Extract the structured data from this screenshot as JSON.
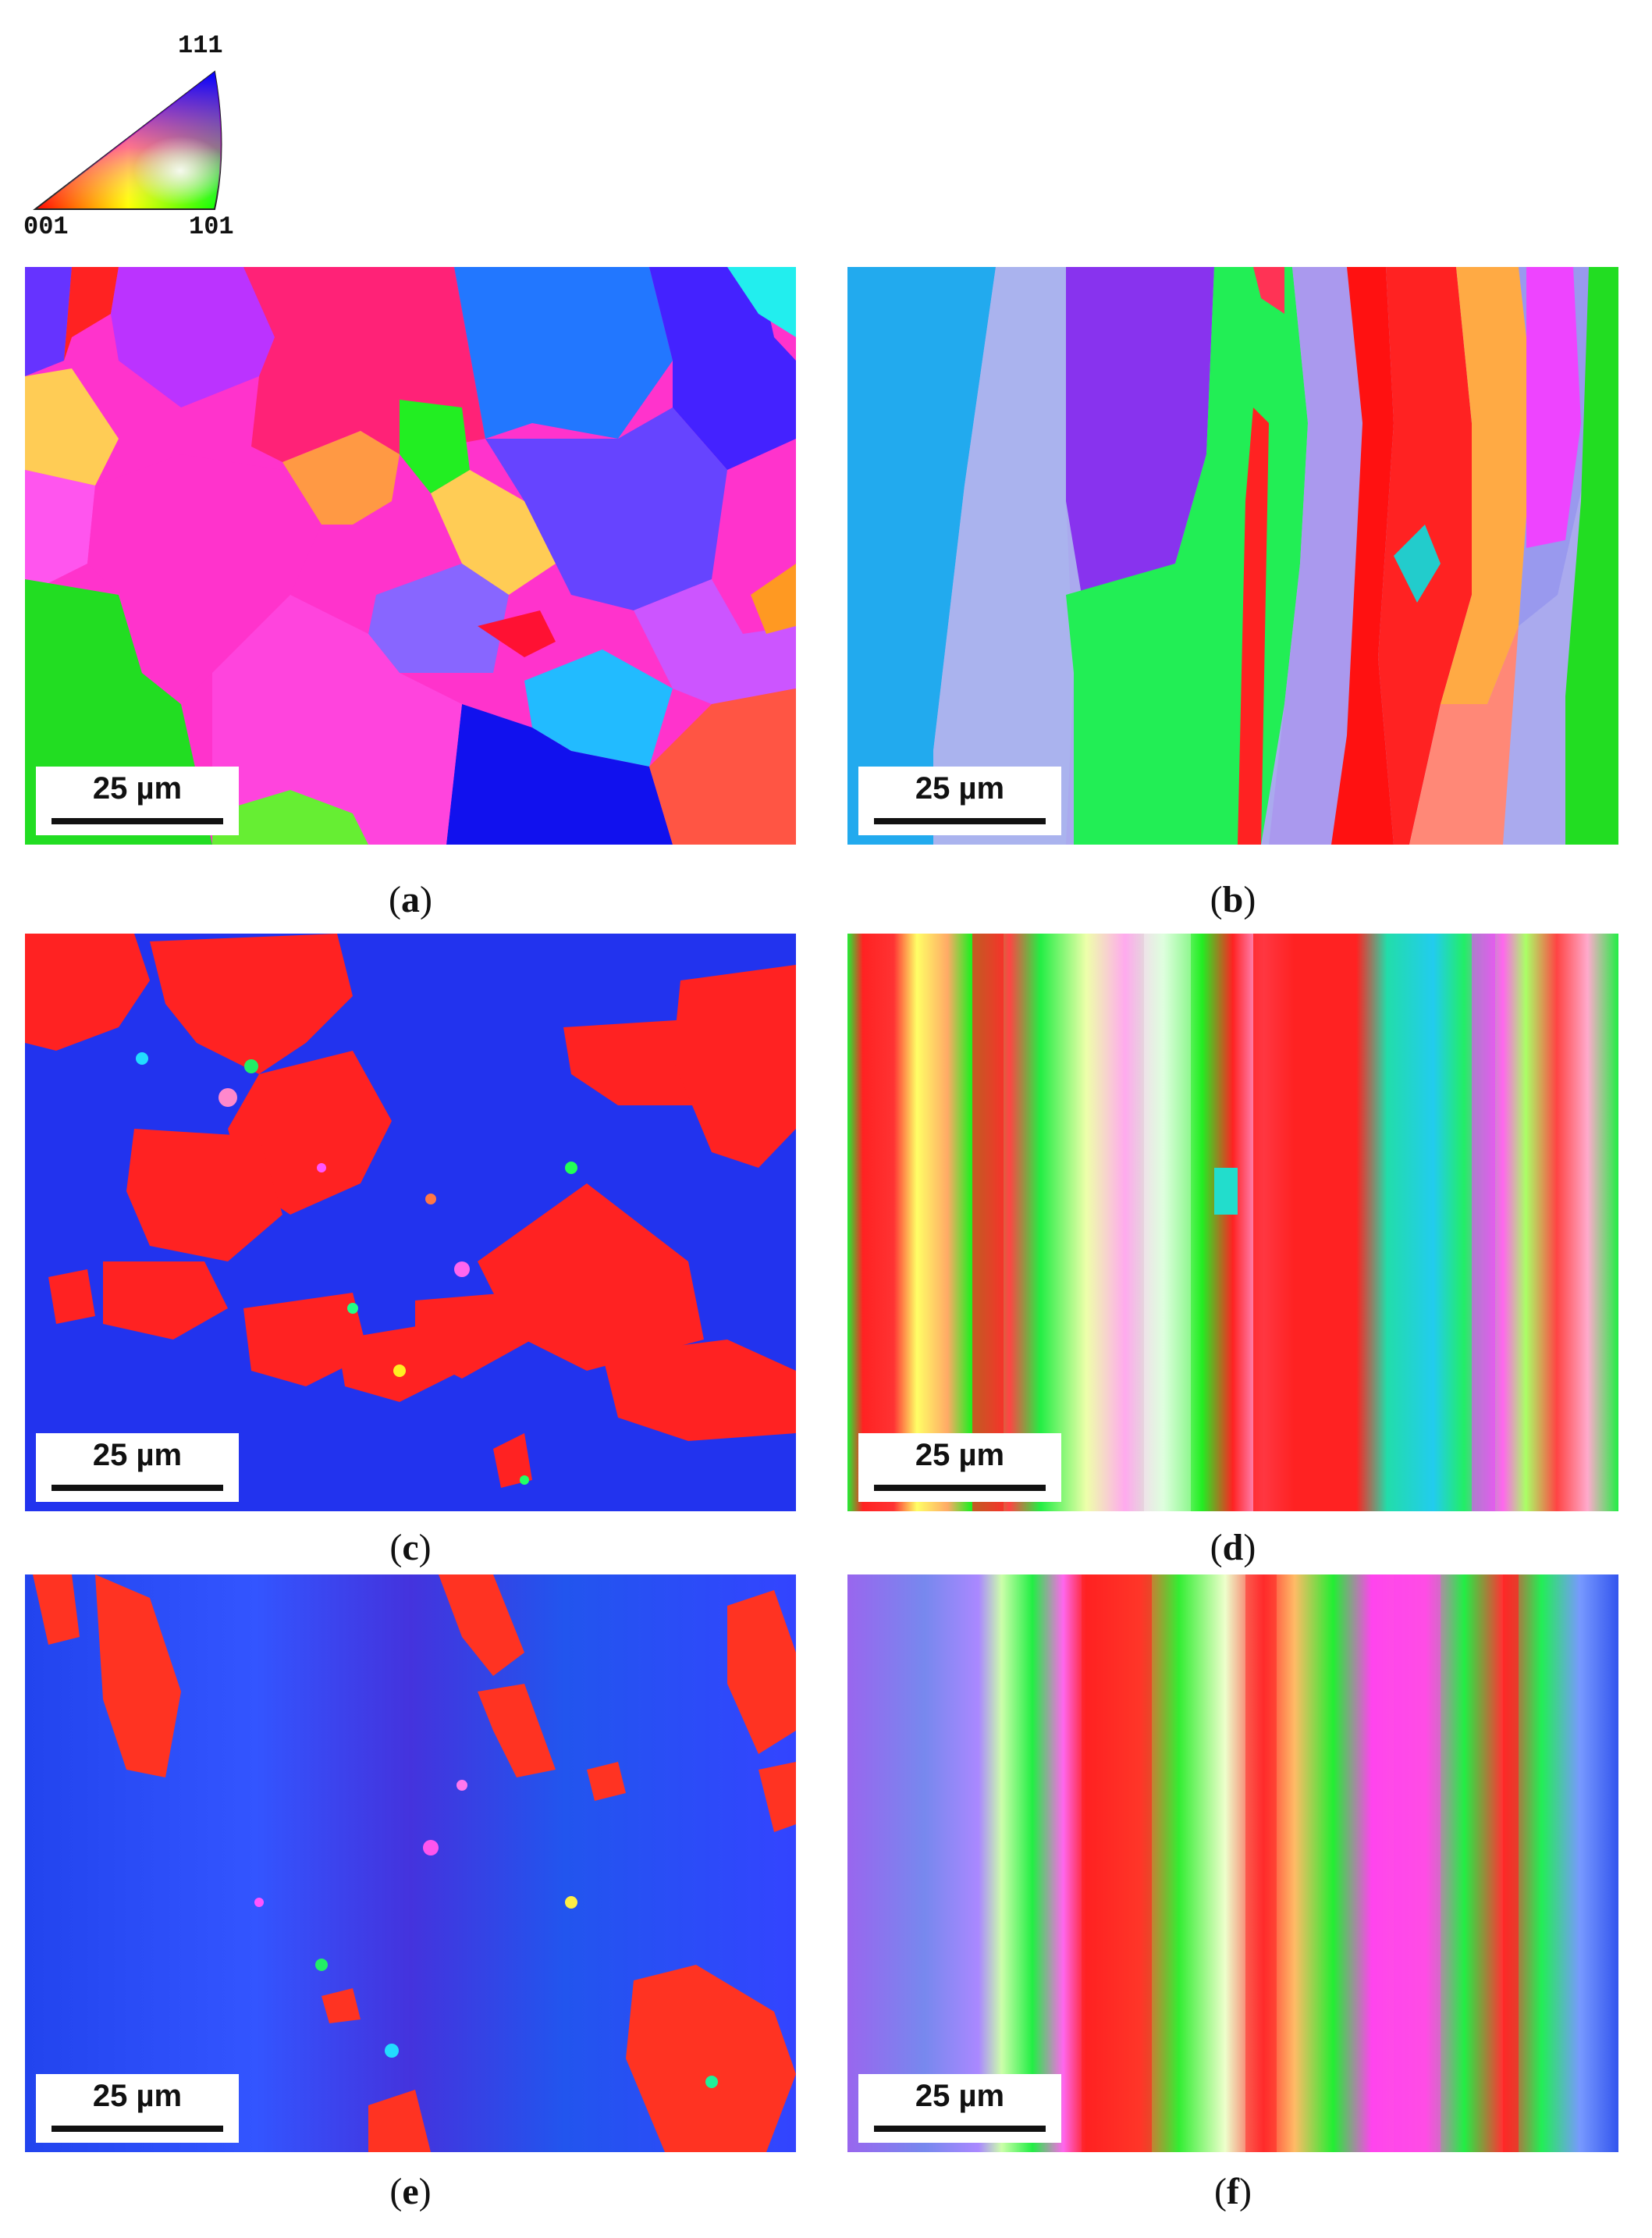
{
  "legend": {
    "pole_111": "111",
    "pole_001": "001",
    "pole_101": "101"
  },
  "panels": [
    {
      "id": "a",
      "scale_label": "25 µm"
    },
    {
      "id": "b",
      "scale_label": "25 µm"
    },
    {
      "id": "c",
      "scale_label": "25 µm"
    },
    {
      "id": "d",
      "scale_label": "25 µm"
    },
    {
      "id": "e",
      "scale_label": "25 µm"
    },
    {
      "id": "f",
      "scale_label": "25 µm"
    }
  ],
  "captions": {
    "a": "a",
    "b": "b",
    "c": "c",
    "d": "d",
    "e": "e",
    "f": "f"
  },
  "colors": {
    "red_001": "#ff1a1a",
    "green_101": "#1aff3a",
    "blue_111": "#1a1aff"
  }
}
